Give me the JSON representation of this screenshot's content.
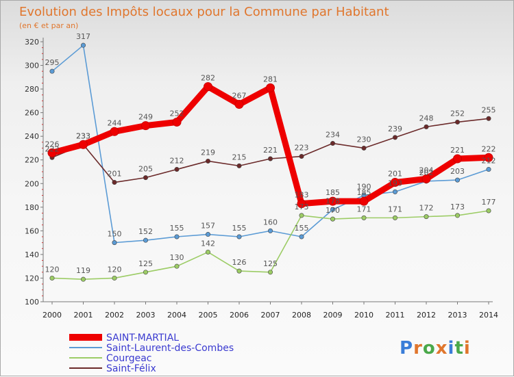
{
  "chart_data": {
    "type": "line",
    "title": "Evolution des Impôts locaux pour la Commune par Habitant",
    "subtitle": "(en € et par an)",
    "xlabel": "",
    "ylabel": "",
    "x": [
      "2000",
      "2001",
      "2002",
      "2003",
      "2004",
      "2005",
      "2006",
      "2007",
      "2008",
      "2009",
      "2010",
      "2011",
      "2012",
      "2013",
      "2014"
    ],
    "ylim": [
      100,
      320
    ],
    "yticks": [
      100,
      120,
      140,
      160,
      180,
      200,
      220,
      240,
      260,
      280,
      300,
      320
    ],
    "series": [
      {
        "name": "Saint-Laurent-des-Combes",
        "color": "#5b9bd5",
        "values": [
          295,
          317,
          150,
          152,
          155,
          157,
          155,
          160,
          155,
          178,
          190,
          193,
          202,
          203,
          212
        ],
        "labels": [
          "295",
          "317",
          "150",
          "152",
          "155",
          "157",
          "155",
          "160",
          "155",
          "178",
          "190",
          "193",
          "202",
          "203",
          "212"
        ]
      },
      {
        "name": "Courgeac",
        "color": "#9ccc65",
        "values": [
          120,
          119,
          120,
          125,
          130,
          142,
          126,
          125,
          173,
          170,
          171,
          171,
          172,
          173,
          177
        ],
        "labels": [
          "120",
          "119",
          "120",
          "125",
          "130",
          "142",
          "126",
          "125",
          "173",
          "170",
          "171",
          "171",
          "172",
          "173",
          "177"
        ]
      },
      {
        "name": "Saint-Félix",
        "color": "#6b2a2a",
        "values": [
          222,
          233,
          201,
          205,
          212,
          219,
          215,
          221,
          223,
          234,
          230,
          239,
          248,
          252,
          255
        ],
        "labels": [
          "222",
          "233",
          "201",
          "205",
          "212",
          "219",
          "215",
          "221",
          "223",
          "234",
          "230",
          "239",
          "248",
          "252",
          "255"
        ]
      },
      {
        "name": "SAINT-MARTIAL",
        "color": "#ee0000",
        "values": [
          226,
          233,
          244,
          249,
          252,
          282,
          267,
          281,
          183,
          185,
          185,
          201,
          204,
          221,
          222
        ],
        "labels": [
          "226",
          "233",
          "244",
          "249",
          "252",
          "282",
          "267",
          "281",
          "183",
          "185",
          "185",
          "201",
          "204",
          "221",
          "222"
        ]
      }
    ],
    "legend": [
      {
        "name": "SAINT-MARTIAL",
        "color": "#ee0000"
      },
      {
        "name": "Saint-Laurent-des-Combes",
        "color": "#5b9bd5"
      },
      {
        "name": "Courgeac",
        "color": "#9ccc65"
      },
      {
        "name": "Saint-Félix",
        "color": "#6b2a2a"
      }
    ],
    "legend_position": "bottom-left",
    "grid": false
  },
  "logo": {
    "text": "Proxiti"
  }
}
